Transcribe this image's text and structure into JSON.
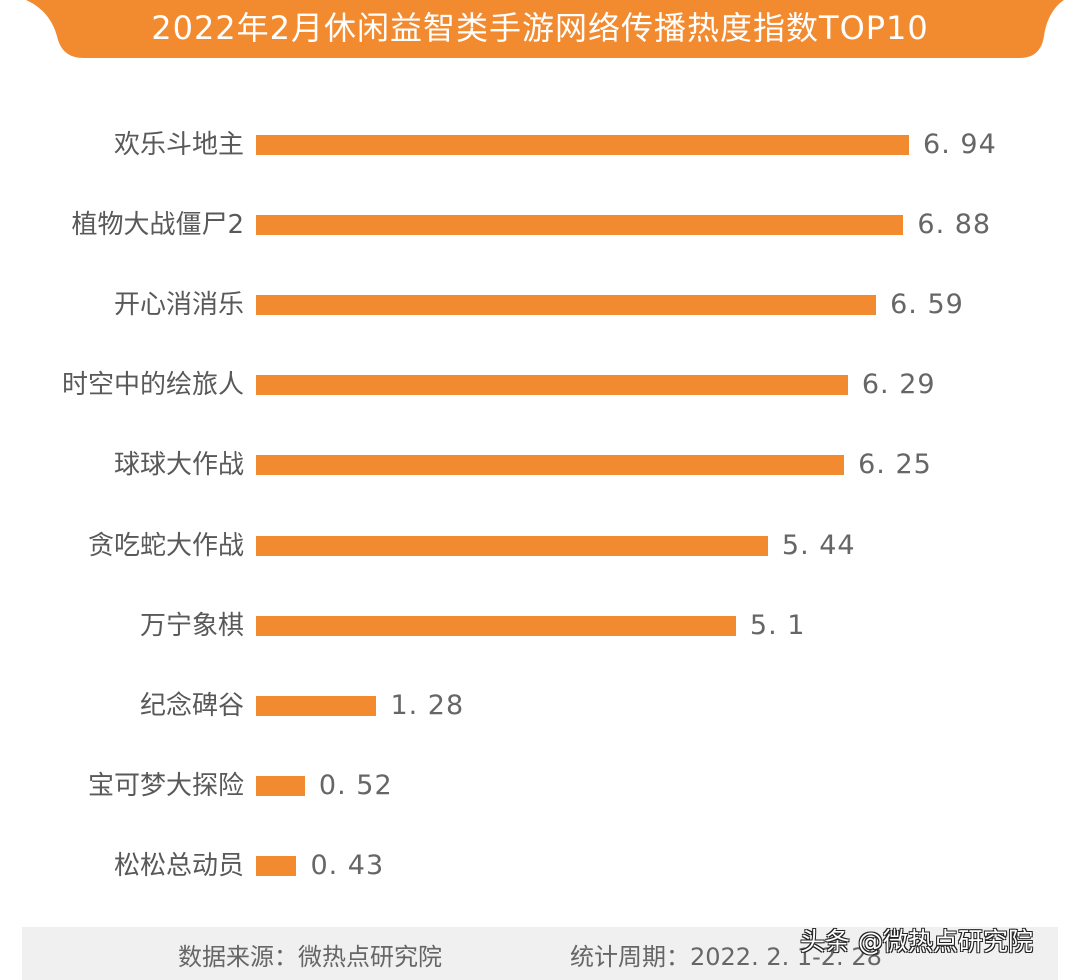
{
  "header": {
    "title": "2022年2月休闲益智类手游网络传播热度指数TOP10",
    "banner_color": "#F28A30"
  },
  "chart_data": {
    "type": "bar",
    "orientation": "horizontal",
    "title": "2022年2月休闲益智类手游网络传播热度指数TOP10",
    "xlabel": "",
    "ylabel": "",
    "categories": [
      "欢乐斗地主",
      "植物大战僵尸2",
      "开心消消乐",
      "时空中的绘旅人",
      "球球大作战",
      "贪吃蛇大作战",
      "万宁象棋",
      "纪念碑谷",
      "宝可梦大探险",
      "松松总动员"
    ],
    "values": [
      6.94,
      6.88,
      6.59,
      6.29,
      6.25,
      5.44,
      5.1,
      1.28,
      0.52,
      0.43
    ],
    "value_labels": [
      "6. 94",
      "6. 88",
      "6. 59",
      "6. 29",
      "6. 25",
      "5. 44",
      "5. 1",
      "1. 28",
      "0. 52",
      "0. 43"
    ],
    "bar_color": "#F28A30",
    "grid": false,
    "axes_visible": false,
    "legend": null,
    "xlim": [
      0,
      7
    ]
  },
  "footer": {
    "source": "数据来源：微热点研究院",
    "period": "统计周期：2022. 2. 1-2. 28",
    "background": "#F0F0F0"
  },
  "watermark": {
    "text": "头条 @微热点研究院"
  }
}
